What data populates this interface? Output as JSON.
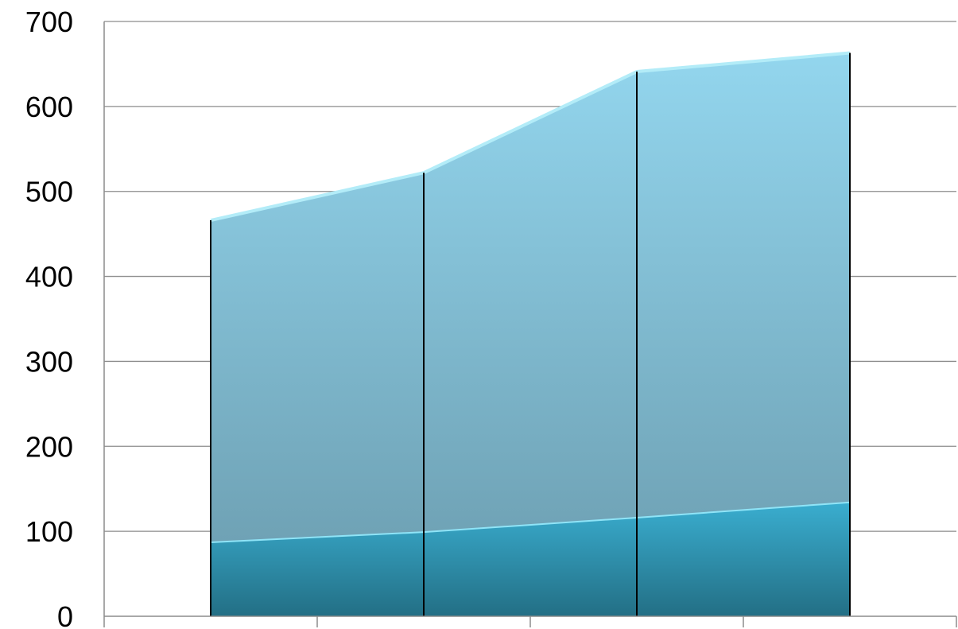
{
  "chart_data": {
    "type": "area",
    "stacked": true,
    "title": "",
    "xlabel": "",
    "ylabel": "",
    "categories": [
      "",
      "",
      "",
      ""
    ],
    "ylim": [
      0,
      700
    ],
    "yticks": [
      0,
      100,
      200,
      300,
      400,
      500,
      600,
      700
    ],
    "ytick_labels": [
      "0",
      "100",
      "200",
      "300",
      "400",
      "500",
      "600",
      "700"
    ],
    "grid": true,
    "legend": "none",
    "series": [
      {
        "values": [
          88,
          100,
          117,
          135
        ],
        "color": "#2b8fab"
      },
      {
        "values": [
          378,
          422,
          524,
          528
        ],
        "color": "#8cc9df"
      }
    ]
  }
}
